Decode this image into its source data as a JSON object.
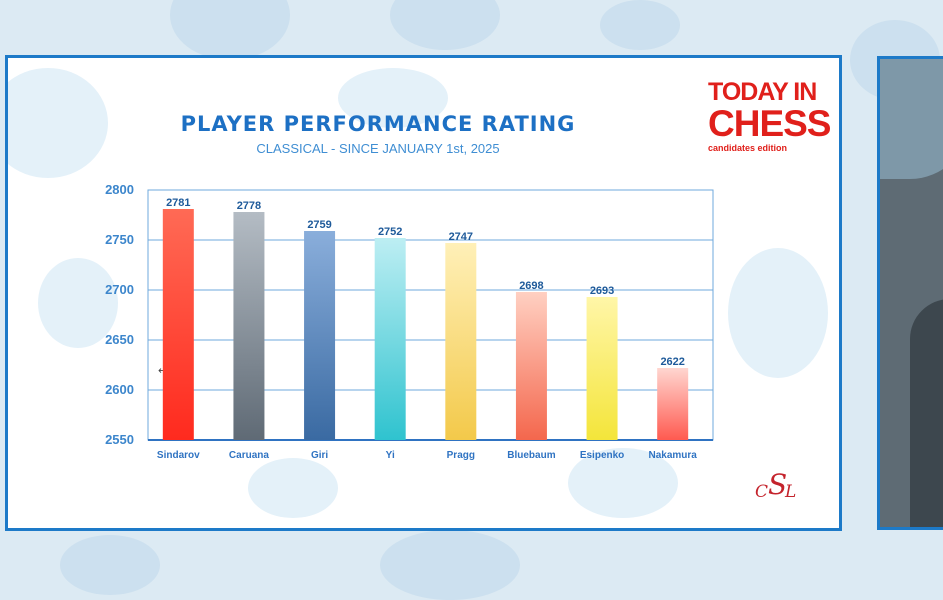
{
  "header": {
    "title": "PLAYER PERFORMANCE RATING",
    "subtitle": "CLASSICAL - SINCE JANUARY 1st, 2025"
  },
  "logo": {
    "line1": "TODAY IN",
    "line2": "CHESS",
    "line3": "candidates edition",
    "club_mark": "CSLC"
  },
  "icons": {
    "cursor": "arrow-cursor-icon"
  },
  "colors": {
    "accent": "#1d70c4",
    "frame": "#1d7ac8",
    "logo_red": "#e0201b"
  },
  "chart_data": {
    "type": "bar",
    "title": "PLAYER PERFORMANCE RATING",
    "subtitle": "CLASSICAL - SINCE JANUARY 1st, 2025",
    "xlabel": "",
    "ylabel": "",
    "ylim": [
      2550,
      2800
    ],
    "yticks": [
      2550,
      2600,
      2650,
      2700,
      2750,
      2800
    ],
    "grid": true,
    "categories": [
      "Sindarov",
      "Caruana",
      "Giri",
      "Yi",
      "Pragg",
      "Bluebaum",
      "Esipenko",
      "Nakamura"
    ],
    "values": [
      2781,
      2778,
      2759,
      2752,
      2747,
      2698,
      2693,
      2622
    ],
    "data_labels": [
      "2781",
      "2778",
      "2759",
      "2752",
      "2747",
      "2698",
      "2693",
      "2622"
    ],
    "bar_colors": [
      [
        "#ff2a1e",
        "#ff6a55"
      ],
      [
        "#5f6a75",
        "#b4bcc4"
      ],
      [
        "#3a6aa2",
        "#8aaedb"
      ],
      [
        "#2fc3cf",
        "#bdeef3"
      ],
      [
        "#f3c94a",
        "#fff0b8"
      ],
      [
        "#f4674d",
        "#ffd0c2"
      ],
      [
        "#f4e53a",
        "#fff6a8"
      ],
      [
        "#ff5a50",
        "#ffd6d0"
      ]
    ]
  }
}
